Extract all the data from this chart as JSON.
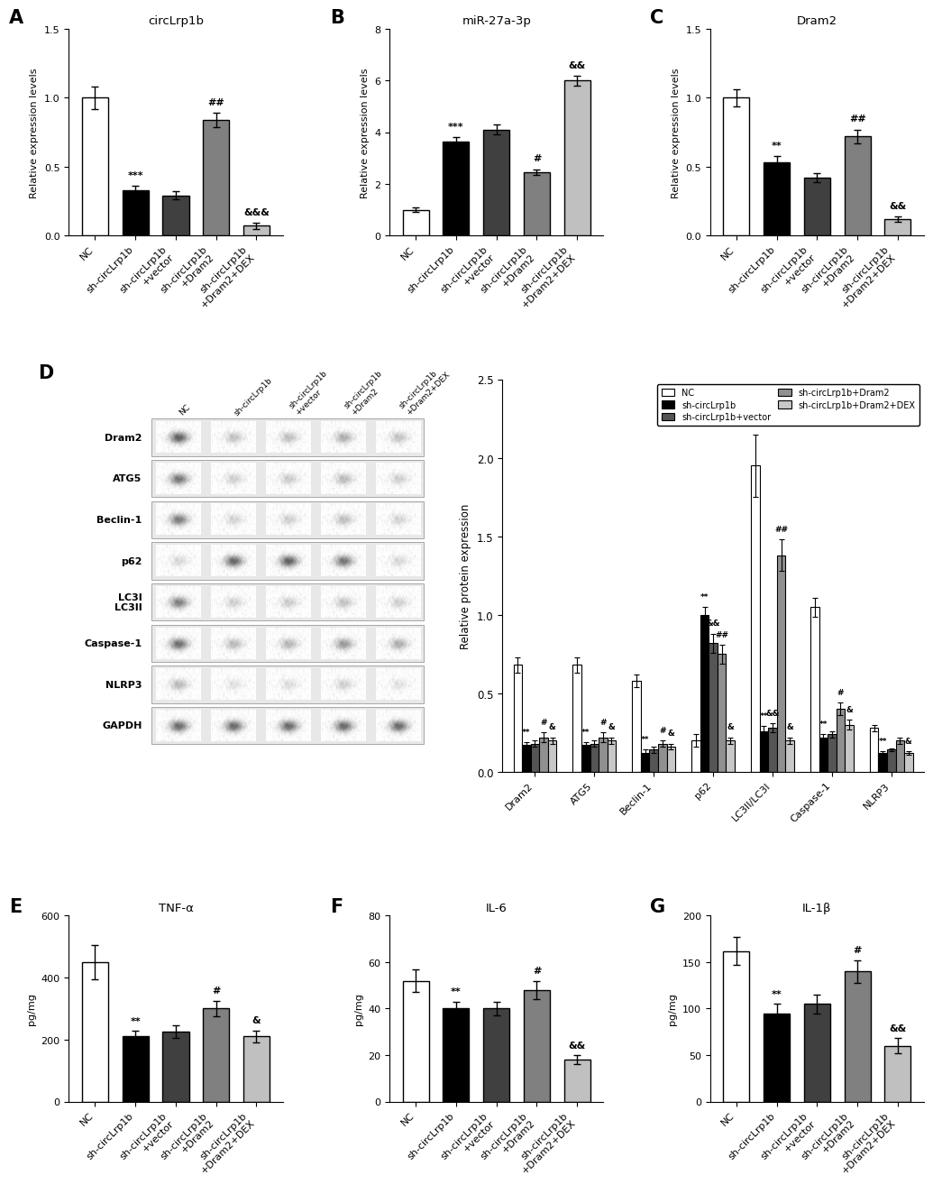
{
  "panel_A": {
    "title": "circLrp1b",
    "ylabel": "Relative expression levels",
    "categories": [
      "NC",
      "sh-circLrp1b",
      "sh-circLrp1b\n+vector",
      "sh-circLrp1b\n+Dram2",
      "sh-circLrp1b\n+Dram2+DEX"
    ],
    "values": [
      1.0,
      0.33,
      0.29,
      0.84,
      0.07
    ],
    "errors": [
      0.08,
      0.03,
      0.03,
      0.05,
      0.02
    ],
    "colors": [
      "white",
      "black",
      "#404040",
      "#808080",
      "#c0c0c0"
    ],
    "ylim": [
      0,
      1.5
    ],
    "yticks": [
      0.0,
      0.5,
      1.0,
      1.5
    ],
    "annotations": [
      "",
      "***",
      "",
      "##",
      "&&&"
    ]
  },
  "panel_B": {
    "title": "miR-27a-3p",
    "ylabel": "Relative expression levels",
    "categories": [
      "NC",
      "sh-circLrp1b",
      "sh-circLrp1b\n+vector",
      "sh-circLrp1b\n+Dram2",
      "sh-circLrp1b\n+Dram2+DEX"
    ],
    "values": [
      1.0,
      3.65,
      4.1,
      2.45,
      6.0
    ],
    "errors": [
      0.1,
      0.15,
      0.2,
      0.12,
      0.18
    ],
    "colors": [
      "white",
      "black",
      "#404040",
      "#808080",
      "#c0c0c0"
    ],
    "ylim": [
      0,
      8
    ],
    "yticks": [
      0,
      2,
      4,
      6,
      8
    ],
    "annotations": [
      "",
      "***",
      "",
      "#",
      "&&"
    ]
  },
  "panel_C": {
    "title": "Dram2",
    "ylabel": "Relative expression levels",
    "categories": [
      "NC",
      "sh-circLrp1b",
      "sh-circLrp1b\n+vector",
      "sh-circLrp1b\n+Dram2",
      "sh-circLrp1b\n+Dram2+DEX"
    ],
    "values": [
      1.0,
      0.53,
      0.42,
      0.72,
      0.12
    ],
    "errors": [
      0.06,
      0.05,
      0.03,
      0.05,
      0.02
    ],
    "colors": [
      "white",
      "black",
      "#404040",
      "#808080",
      "#c0c0c0"
    ],
    "ylim": [
      0,
      1.5
    ],
    "yticks": [
      0.0,
      0.5,
      1.0,
      1.5
    ],
    "annotations": [
      "",
      "**",
      "",
      "##",
      "&&"
    ]
  },
  "panel_D_bar": {
    "categories": [
      "Dram2",
      "ATG5",
      "Beclin-1",
      "p62",
      "LC3II/LC3I",
      "Caspase-1",
      "NLRP3"
    ],
    "groups": [
      "NC",
      "sh-circLrp1b",
      "sh-circLrp1b+vector",
      "sh-circLrp1b+Dram2",
      "sh-circLrp1b+Dram2+DEX"
    ],
    "colors": [
      "white",
      "black",
      "#555555",
      "#909090",
      "#c8c8c8"
    ],
    "values": [
      [
        0.68,
        0.17,
        0.18,
        0.22,
        0.2
      ],
      [
        0.68,
        0.17,
        0.18,
        0.22,
        0.2
      ],
      [
        0.58,
        0.12,
        0.14,
        0.18,
        0.16
      ],
      [
        0.2,
        1.0,
        0.82,
        0.75,
        0.2
      ],
      [
        1.95,
        0.26,
        0.28,
        1.38,
        0.2
      ],
      [
        1.05,
        0.22,
        0.24,
        0.4,
        0.3
      ],
      [
        0.28,
        0.12,
        0.14,
        0.2,
        0.12
      ]
    ],
    "errors": [
      [
        0.05,
        0.02,
        0.02,
        0.03,
        0.02
      ],
      [
        0.05,
        0.02,
        0.02,
        0.03,
        0.02
      ],
      [
        0.04,
        0.02,
        0.02,
        0.02,
        0.02
      ],
      [
        0.04,
        0.05,
        0.06,
        0.06,
        0.02
      ],
      [
        0.2,
        0.03,
        0.03,
        0.1,
        0.02
      ],
      [
        0.06,
        0.02,
        0.02,
        0.04,
        0.03
      ],
      [
        0.02,
        0.01,
        0.01,
        0.02,
        0.01
      ]
    ],
    "ylabel": "Relative protein expression",
    "ylim": [
      0,
      2.5
    ],
    "yticks": [
      0.0,
      0.5,
      1.0,
      1.5,
      2.0,
      2.5
    ],
    "annotations": [
      [
        "",
        "**",
        "",
        "#",
        "&"
      ],
      [
        "",
        "**",
        "",
        "#",
        "&"
      ],
      [
        "",
        "**",
        "",
        "#",
        "&"
      ],
      [
        "",
        "**",
        "&&",
        "##",
        "&"
      ],
      [
        "",
        "**",
        "&&",
        "##",
        "&"
      ],
      [
        "",
        "**",
        "",
        "#",
        "&"
      ],
      [
        "",
        "**",
        "",
        "",
        "&"
      ]
    ]
  },
  "panel_E": {
    "title": "TNF-α",
    "ylabel": "pg/mg",
    "categories": [
      "NC",
      "sh-circLrp1b",
      "sh-circLrp1b\n+vector",
      "sh-circLrp1b\n+Dram2",
      "sh-circLrp1b\n+Dram2+DEX"
    ],
    "values": [
      450,
      210,
      225,
      300,
      210
    ],
    "errors": [
      55,
      18,
      20,
      25,
      20
    ],
    "colors": [
      "white",
      "black",
      "#404040",
      "#808080",
      "#c0c0c0"
    ],
    "ylim": [
      0,
      600
    ],
    "yticks": [
      0,
      200,
      400,
      600
    ],
    "annotations": [
      "",
      "**",
      "",
      "#",
      "&"
    ]
  },
  "panel_F": {
    "title": "IL-6",
    "ylabel": "pg/mg",
    "categories": [
      "NC",
      "sh-circLrp1b",
      "sh-circLrp1b\n+vector",
      "sh-circLrp1b\n+Dram2",
      "sh-circLrp1b\n+Dram2+DEX"
    ],
    "values": [
      52,
      40,
      40,
      48,
      18
    ],
    "errors": [
      5,
      3,
      3,
      4,
      2
    ],
    "colors": [
      "white",
      "black",
      "#404040",
      "#808080",
      "#c0c0c0"
    ],
    "ylim": [
      0,
      80
    ],
    "yticks": [
      0,
      20,
      40,
      60,
      80
    ],
    "annotations": [
      "",
      "**",
      "",
      "#",
      "&&"
    ]
  },
  "panel_G": {
    "title": "IL-1β",
    "ylabel": "pg/mg",
    "categories": [
      "NC",
      "sh-circLrp1b",
      "sh-circLrp1b\n+vector",
      "sh-circLrp1b\n+Dram2",
      "sh-circLrp1b\n+Dram2+DEX"
    ],
    "values": [
      162,
      95,
      105,
      140,
      60
    ],
    "errors": [
      15,
      10,
      10,
      12,
      8
    ],
    "colors": [
      "white",
      "black",
      "#404040",
      "#808080",
      "#c0c0c0"
    ],
    "ylim": [
      0,
      200
    ],
    "yticks": [
      0,
      50,
      100,
      150,
      200
    ],
    "annotations": [
      "",
      "**",
      "",
      "#",
      "&&"
    ]
  },
  "bar_edgecolor": "black",
  "bar_linewidth": 1.0,
  "legend_labels": [
    "NC",
    "sh-circLrp1b",
    "sh-circLrp1b+vector",
    "sh-circLrp1b+Dram2",
    "sh-circLrp1b+Dram2+DEX"
  ],
  "wb_labels": [
    "Dram2",
    "ATG5",
    "Beclin-1",
    "p62",
    "LC3I\nLC3II",
    "Caspase-1",
    "NLRP3",
    "GAPDH"
  ],
  "wb_col_headers": [
    "NC",
    "sh-circLrp1b",
    "sh-circLrp1b\n+vector",
    "sh-circLrp1b\n+Dram2",
    "sh-circLrp1b\n+Dram2+DEX"
  ],
  "wb_band_intensities": [
    [
      0.75,
      0.28,
      0.3,
      0.38,
      0.28
    ],
    [
      0.65,
      0.22,
      0.24,
      0.32,
      0.22
    ],
    [
      0.62,
      0.2,
      0.22,
      0.3,
      0.2
    ],
    [
      0.18,
      0.72,
      0.75,
      0.65,
      0.18
    ],
    [
      0.6,
      0.22,
      0.24,
      0.28,
      0.22
    ],
    [
      0.68,
      0.32,
      0.34,
      0.48,
      0.38
    ],
    [
      0.32,
      0.14,
      0.16,
      0.22,
      0.14
    ],
    [
      0.7,
      0.7,
      0.7,
      0.7,
      0.7
    ]
  ]
}
